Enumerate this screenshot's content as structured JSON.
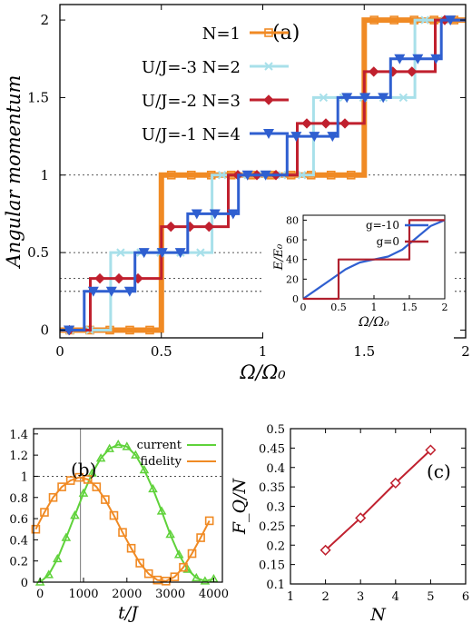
{
  "chart_data": [
    {
      "panel_label": "(a)",
      "type": "line",
      "xlabel": "Ω/Ω₀",
      "ylabel": "Angular momentum",
      "xlim": [
        0,
        2
      ],
      "ylim": [
        -0.05,
        2.1
      ],
      "xticks": [
        "0",
        "0.5",
        "1",
        "1.5",
        "2"
      ],
      "yticks": [
        "0",
        "0.5",
        "1",
        "1.5",
        "2"
      ],
      "reference_lines": [
        0.25,
        0.333,
        0.5,
        1
      ],
      "legend_position": "top-left",
      "series": [
        {
          "name": "N=1",
          "color": "#f08a24",
          "marker": "square",
          "x": [
            0,
            0.5,
            0.5,
            1.5,
            1.5,
            2
          ],
          "y": [
            0,
            0,
            1,
            1,
            2,
            2
          ]
        },
        {
          "name": "U/J=-3 N=2",
          "color": "#a8e0ea",
          "marker": "x",
          "x": [
            0,
            0.25,
            0.25,
            0.75,
            0.75,
            1.25,
            1.25,
            1.75,
            1.75,
            2
          ],
          "y": [
            0,
            0,
            0.5,
            0.5,
            1,
            1,
            1.5,
            1.5,
            2,
            2
          ]
        },
        {
          "name": "U/J=-2 N=3",
          "color": "#c0202e",
          "marker": "diamond",
          "x": [
            0,
            0.15,
            0.15,
            0.5,
            0.5,
            0.83,
            0.83,
            1.17,
            1.17,
            1.5,
            1.5,
            1.85,
            1.85,
            2
          ],
          "y": [
            0,
            0,
            0.333,
            0.333,
            0.667,
            0.667,
            1,
            1,
            1.333,
            1.333,
            1.667,
            1.667,
            2,
            2
          ]
        },
        {
          "name": "U/J=-1 N=4",
          "color": "#2f5fd0",
          "marker": "triangle-down",
          "x": [
            0,
            0.12,
            0.12,
            0.37,
            0.37,
            0.63,
            0.63,
            0.88,
            0.88,
            1.12,
            1.12,
            1.37,
            1.37,
            1.63,
            1.63,
            1.88,
            1.88,
            2
          ],
          "y": [
            0,
            0,
            0.25,
            0.25,
            0.5,
            0.5,
            0.75,
            0.75,
            1,
            1,
            1.25,
            1.25,
            1.5,
            1.5,
            1.75,
            1.75,
            2,
            2
          ]
        }
      ],
      "inset": {
        "xlabel": "Ω/Ω₀",
        "ylabel": "E/E₀",
        "xlim": [
          0,
          2
        ],
        "ylim": [
          0,
          85
        ],
        "xticks": [
          "0",
          "0.5",
          "1",
          "1.5",
          "2"
        ],
        "yticks": [
          "0",
          "20",
          "40",
          "60",
          "80"
        ],
        "series": [
          {
            "name": "g=-10",
            "color": "#2f5fd0",
            "x": [
              0,
              0.2,
              0.4,
              0.6,
              0.8,
              1.0,
              1.2,
              1.4,
              1.6,
              1.8,
              2.0
            ],
            "y": [
              0,
              10,
              20,
              30,
              37,
              40,
              43,
              50,
              62,
              74,
              80
            ]
          },
          {
            "name": "g=0",
            "color": "#b0202e",
            "x": [
              0,
              0.5,
              0.5,
              1.5,
              1.5,
              2
            ],
            "y": [
              0,
              0,
              40,
              40,
              80,
              80
            ]
          }
        ]
      }
    },
    {
      "panel_label": "(b)",
      "type": "line",
      "xlabel": "t/J",
      "ylabel": "",
      "xlim": [
        -150,
        4200
      ],
      "ylim": [
        0,
        1.45
      ],
      "xticks": [
        "0",
        "1000",
        "2000",
        "3000",
        "4000"
      ],
      "yticks": [
        "0",
        "0.2",
        "0.4",
        "0.6",
        "0.8",
        "1",
        "1.2",
        "1.4"
      ],
      "reference_lines": [
        1.0
      ],
      "vertical_line": 930,
      "legend_position": "top-right",
      "series": [
        {
          "name": "current",
          "color": "#5fd23a",
          "marker": "triangle",
          "x": [
            0,
            200,
            400,
            600,
            800,
            1000,
            1200,
            1400,
            1600,
            1800,
            2000,
            2200,
            2400,
            2600,
            2800,
            3000,
            3200,
            3400,
            3600,
            3800,
            4000
          ],
          "y": [
            0,
            0.07,
            0.22,
            0.42,
            0.63,
            0.84,
            1.03,
            1.17,
            1.26,
            1.3,
            1.28,
            1.2,
            1.06,
            0.88,
            0.67,
            0.45,
            0.26,
            0.12,
            0.04,
            0.01,
            0.03
          ]
        },
        {
          "name": "fidelity",
          "color": "#f08a24",
          "marker": "square",
          "x": [
            -100,
            100,
            300,
            500,
            700,
            900,
            1100,
            1300,
            1500,
            1700,
            1900,
            2100,
            2300,
            2500,
            2700,
            2900,
            3100,
            3300,
            3500,
            3700,
            3900
          ],
          "y": [
            0.5,
            0.66,
            0.8,
            0.9,
            0.96,
            0.99,
            0.97,
            0.9,
            0.78,
            0.63,
            0.47,
            0.32,
            0.18,
            0.08,
            0.02,
            0.01,
            0.05,
            0.14,
            0.27,
            0.42,
            0.58
          ]
        }
      ]
    },
    {
      "panel_label": "(c)",
      "type": "line",
      "xlabel": "N",
      "ylabel": "F_Q/N",
      "xlim": [
        1,
        6
      ],
      "ylim": [
        0.1,
        0.5
      ],
      "xticks": [
        "1",
        "2",
        "3",
        "4",
        "5",
        "6"
      ],
      "yticks": [
        "0.1",
        "0.15",
        "0.2",
        "0.25",
        "0.3",
        "0.35",
        "0.4",
        "0.45",
        "0.5"
      ],
      "series": [
        {
          "name": "",
          "color": "#c0202e",
          "marker": "diamond-open",
          "x": [
            2,
            3,
            4,
            5
          ],
          "y": [
            0.187,
            0.27,
            0.36,
            0.445
          ]
        }
      ]
    }
  ]
}
